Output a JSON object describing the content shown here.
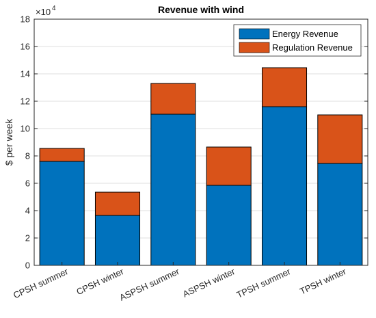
{
  "chart_data": {
    "type": "bar",
    "stacked": true,
    "title": "Revenue with wind",
    "xlabel": "",
    "ylabel": "$ per week",
    "exponent_label": "×10",
    "exponent_power": "4",
    "ylim": [
      0,
      180000
    ],
    "yticks": [
      0,
      20000,
      40000,
      60000,
      80000,
      100000,
      120000,
      140000,
      160000,
      180000
    ],
    "ytick_labels": [
      "0",
      "2",
      "4",
      "6",
      "8",
      "10",
      "12",
      "14",
      "16",
      "18"
    ],
    "grid": true,
    "legend_position": "top-right",
    "categories": [
      "CPSH summer",
      "CPSH winter",
      "ASPSH summer",
      "ASPSH winter",
      "TPSH summer",
      "TPSH winter"
    ],
    "series": [
      {
        "name": "Energy Revenue",
        "color": "#0072BD",
        "values": [
          76000,
          36500,
          110500,
          58500,
          116000,
          74500
        ]
      },
      {
        "name": "Regulation Revenue",
        "color": "#D95319",
        "values": [
          9500,
          17000,
          22500,
          28000,
          28500,
          35500
        ]
      }
    ]
  }
}
